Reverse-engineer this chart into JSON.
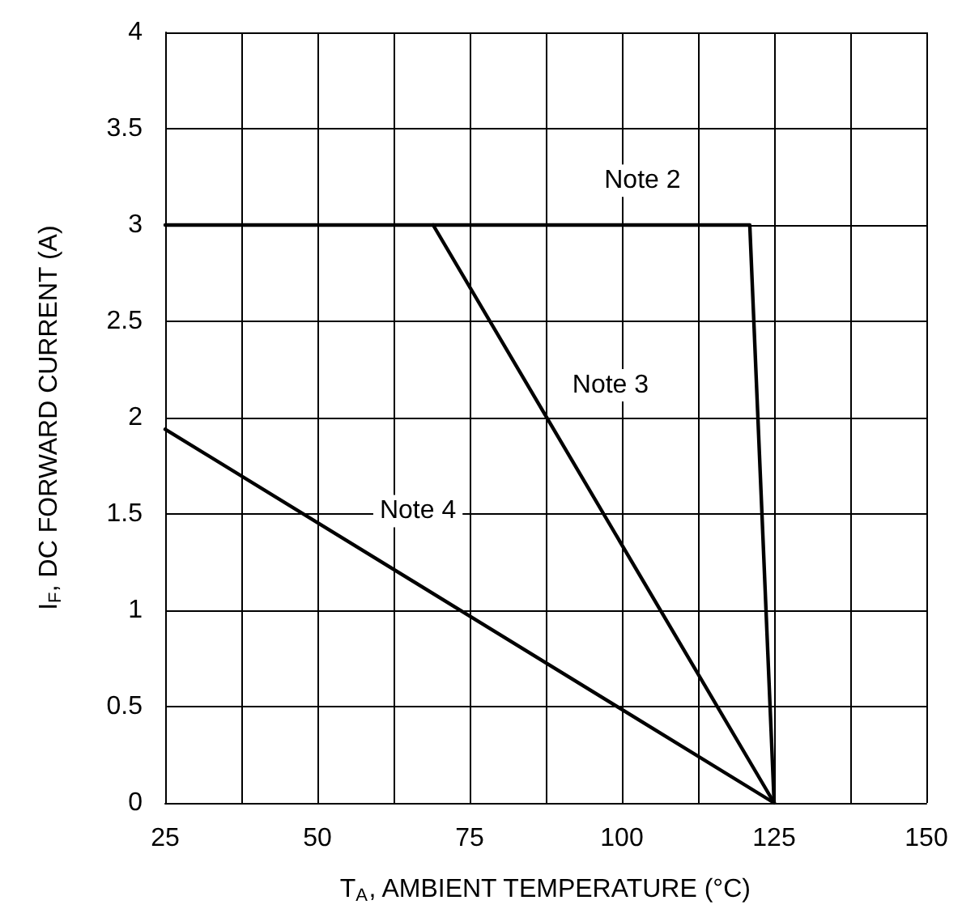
{
  "chart_data": {
    "type": "line",
    "xlabel": "T$_{A}$, AMBIENT TEMPERATURE (°C)",
    "ylabel": "I$_{F}$, DC FORWARD CURRENT (A)",
    "series": [
      {
        "color": "#000000",
        "x": [
          25,
          121,
          125
        ],
        "values": [
          3,
          3,
          0
        ]
      },
      {
        "color": "#000000",
        "x": [
          69,
          125
        ],
        "values": [
          3,
          0
        ]
      },
      {
        "color": "#000000",
        "x": [
          25,
          125
        ],
        "values": [
          1.94,
          0
        ]
      }
    ],
    "xlim": [
      25,
      150
    ],
    "xticks": [
      25,
      {
        "value": 37.5,
        "label": null
      },
      50,
      {
        "value": 62.5,
        "label": null
      },
      75,
      {
        "value": 87.5,
        "label": null
      },
      100,
      {
        "value": 112.5,
        "label": null
      },
      125,
      {
        "value": 137.5,
        "label": null
      },
      150
    ],
    "ylim": [
      0,
      4
    ],
    "yticks": [
      0,
      0.5,
      1,
      1.5,
      2,
      2.5,
      3,
      3.5,
      4
    ],
    "grid": true,
    "marker": "none",
    "line_style": "solid",
    "annotations": [
      "Note 2",
      "Note 3",
      "Note 4"
    ]
  }
}
